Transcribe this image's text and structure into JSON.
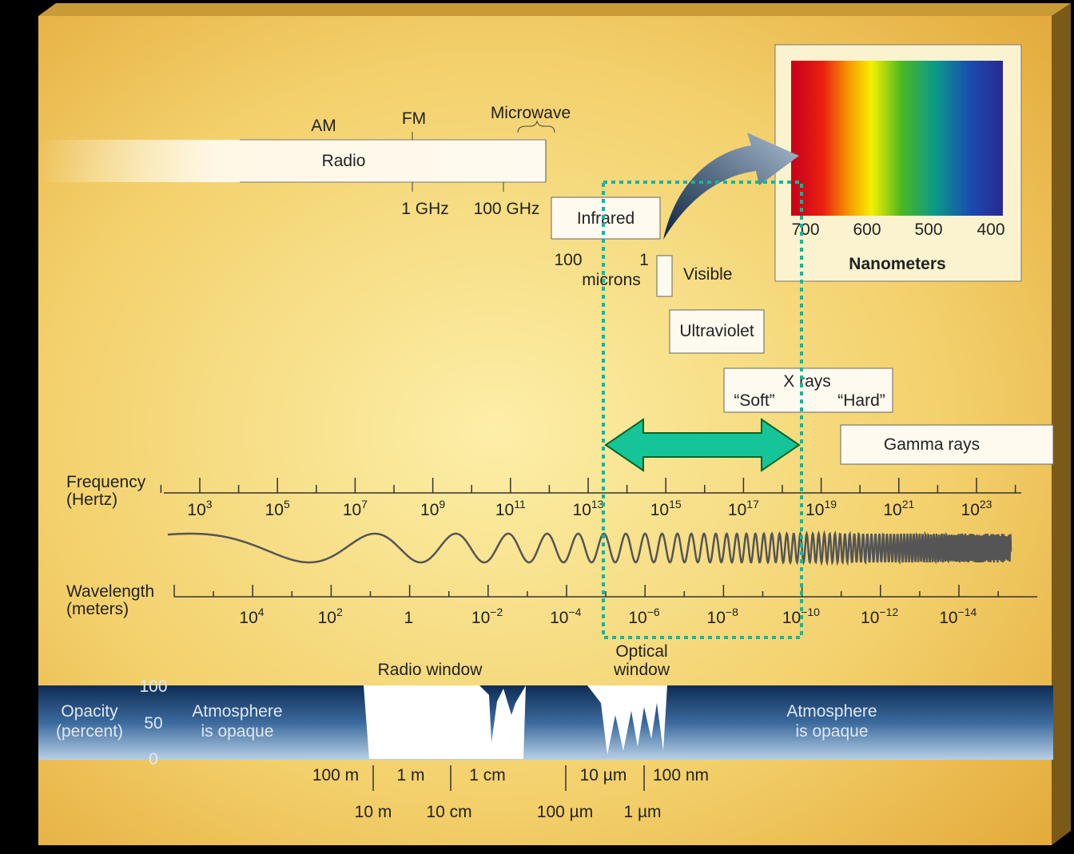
{
  "bands": {
    "am": "AM",
    "fm": "FM",
    "microwave": "Microwave",
    "radio": "Radio",
    "ghz1": "1 GHz",
    "ghz100": "100 GHz",
    "infrared": "Infrared",
    "ir_left": "100",
    "ir_right": "1",
    "microns": "microns",
    "visible": "Visible",
    "ultraviolet": "Ultraviolet",
    "xrays": "X rays",
    "soft": "“Soft”",
    "hard": "“Hard”",
    "gamma": "Gamma rays"
  },
  "spectrum_inset": {
    "ticks": [
      "700",
      "600",
      "500",
      "400"
    ],
    "label": "Nanometers"
  },
  "frequency": {
    "label": [
      "Frequency",
      "(Hertz)"
    ],
    "ticks": [
      {
        "base": "10",
        "exp": "3"
      },
      {
        "base": "10",
        "exp": "5"
      },
      {
        "base": "10",
        "exp": "7"
      },
      {
        "base": "10",
        "exp": "9"
      },
      {
        "base": "10",
        "exp": "11"
      },
      {
        "base": "10",
        "exp": "13"
      },
      {
        "base": "10",
        "exp": "15"
      },
      {
        "base": "10",
        "exp": "17"
      },
      {
        "base": "10",
        "exp": "19"
      },
      {
        "base": "10",
        "exp": "21"
      },
      {
        "base": "10",
        "exp": "23"
      }
    ]
  },
  "wavelength": {
    "label": [
      "Wavelength",
      "(meters)"
    ],
    "ticks": [
      {
        "base": "10",
        "exp": "4"
      },
      {
        "base": "10",
        "exp": "2"
      },
      {
        "base": "1",
        "exp": ""
      },
      {
        "base": "10",
        "exp": "−2"
      },
      {
        "base": "10",
        "exp": "−4"
      },
      {
        "base": "10",
        "exp": "−6"
      },
      {
        "base": "10",
        "exp": "−8"
      },
      {
        "base": "10",
        "exp": "−10"
      },
      {
        "base": "10",
        "exp": "−12"
      },
      {
        "base": "10",
        "exp": "−14"
      }
    ]
  },
  "windows": {
    "radio": "Radio window",
    "optical": [
      "Optical",
      "window"
    ]
  },
  "opacity": {
    "label": [
      "Opacity",
      "(percent)"
    ],
    "ticks": [
      "100",
      "50",
      "0"
    ],
    "left": [
      "Atmosphere",
      "is opaque"
    ],
    "right": [
      "Atmosphere",
      "is opaque"
    ]
  },
  "bottom_scale": {
    "top": [
      "100 m",
      "1 m",
      "1 cm",
      "10 µm",
      "100 nm"
    ],
    "bottom": [
      "10 m",
      "10 cm",
      "100 µm",
      "1 µm"
    ]
  }
}
